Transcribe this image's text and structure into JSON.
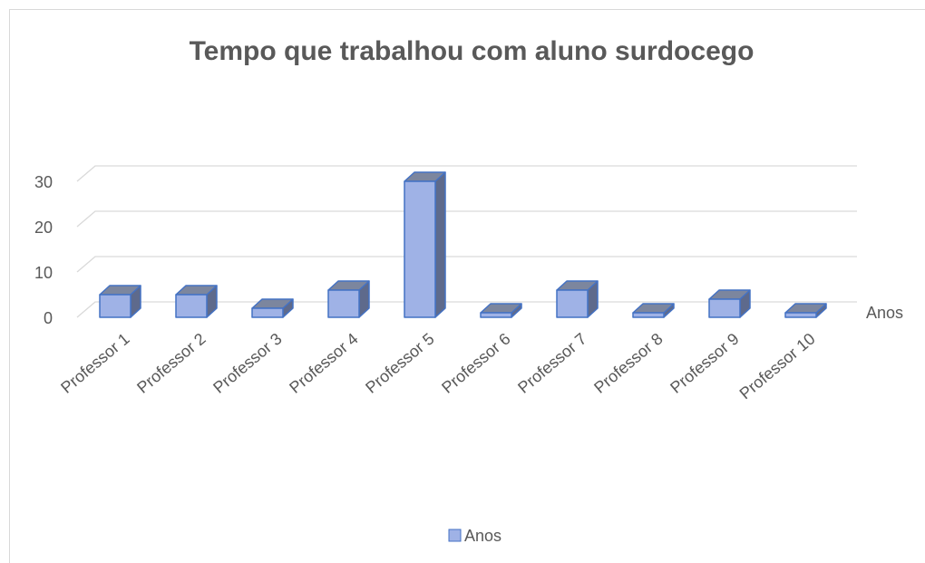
{
  "chart_data": {
    "type": "bar3d",
    "title": "Tempo que trabalhou com aluno surdocego",
    "categories": [
      "Professor 1",
      "Professor 2",
      "Professor 3",
      "Professor 4",
      "Professor 5",
      "Professor 6",
      "Professor 7",
      "Professor 8",
      "Professor 9",
      "Professor 10"
    ],
    "series": [
      {
        "name": "Anos",
        "color": "#9fb2e6",
        "values": [
          5,
          5,
          2,
          6,
          30,
          1,
          6,
          1,
          4,
          1
        ]
      }
    ],
    "ylim": [
      0,
      30
    ],
    "yticks": [
      0,
      10,
      20,
      30
    ],
    "grid": true,
    "legend": "bottom"
  }
}
